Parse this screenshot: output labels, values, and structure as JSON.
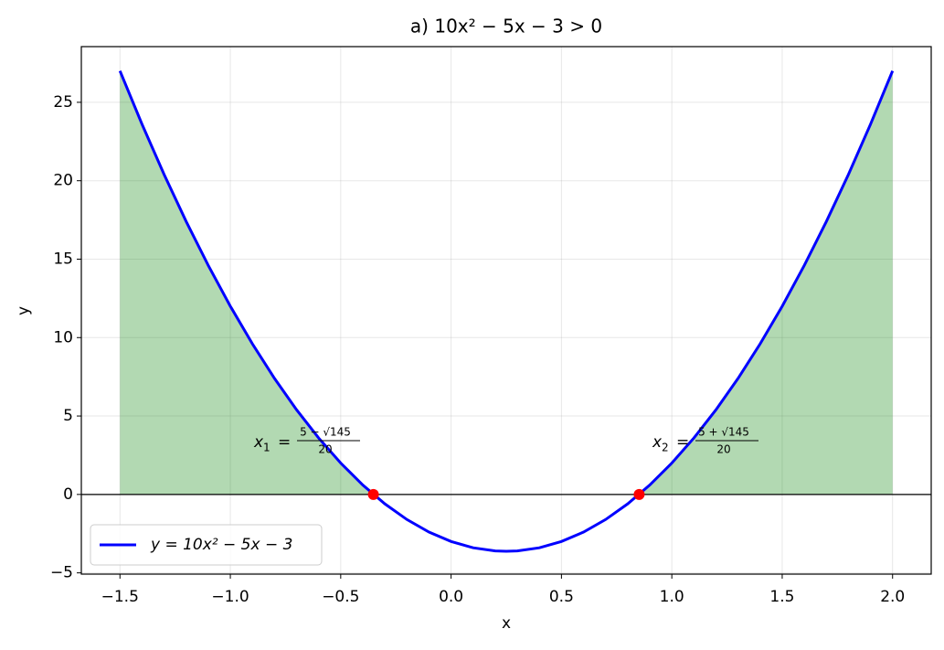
{
  "chart_data": {
    "type": "line",
    "title": "a) 10x² − 5x − 3 > 0",
    "x_label": "x",
    "y_label": "y",
    "xlim": [
      -1.675,
      2.175
    ],
    "ylim": [
      -5.08,
      28.55
    ],
    "xticks": [
      {
        "value": -1.5,
        "label": "−1.5"
      },
      {
        "value": -1.0,
        "label": "−1.0"
      },
      {
        "value": -0.5,
        "label": "−0.5"
      },
      {
        "value": 0.0,
        "label": "0.0"
      },
      {
        "value": 0.5,
        "label": "0.5"
      },
      {
        "value": 1.0,
        "label": "1.0"
      },
      {
        "value": 1.5,
        "label": "1.5"
      },
      {
        "value": 2.0,
        "label": "2.0"
      }
    ],
    "yticks": [
      {
        "value": -5,
        "label": "−5"
      },
      0,
      5,
      10,
      15,
      20,
      25
    ],
    "grid": true,
    "legend": "lower left",
    "fill_color": "#008000",
    "series": [
      {
        "name": "y = 10x² − 5x − 3",
        "color": "#0000ff",
        "x": [
          -1.5,
          -1.4,
          -1.3,
          -1.2,
          -1.1,
          -1.0,
          -0.9,
          -0.8,
          -0.7,
          -0.6,
          -0.5,
          -0.4,
          -0.3,
          -0.2,
          -0.1,
          0,
          0.1,
          0.2,
          0.25,
          0.3,
          0.4,
          0.5,
          0.6,
          0.7,
          0.8,
          0.9,
          1.0,
          1.1,
          1.2,
          1.3,
          1.4,
          1.5,
          1.6,
          1.7,
          1.8,
          1.9,
          2.0
        ],
        "values": [
          27,
          23.6,
          20.4,
          17.4,
          14.6,
          12,
          9.6,
          7.4,
          5.4,
          3.6,
          2,
          0.6,
          -0.6,
          -1.6,
          -2.4,
          -3,
          -3.4,
          -3.6,
          -3.625,
          -3.6,
          -3.4,
          -3,
          -2.4,
          -1.6,
          -0.6,
          0.6,
          2,
          3.6,
          5.4,
          7.4,
          9.6,
          12,
          14.6,
          17.4,
          20.4,
          23.6,
          27
        ]
      }
    ],
    "roots": {
      "color": "#ff0000",
      "x": [
        -0.352,
        0.852
      ],
      "values": [
        0,
        0
      ]
    },
    "annotations": [
      {
        "lhs": "x",
        "sub": "1",
        "eq": "=",
        "num": "5 − √145",
        "den": "20"
      },
      {
        "lhs": "x",
        "sub": "2",
        "eq": "=",
        "num": "5 + √145",
        "den": "20"
      }
    ]
  }
}
